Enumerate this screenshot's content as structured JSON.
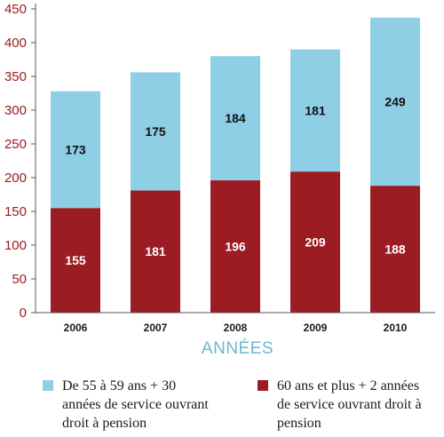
{
  "chart_data": {
    "type": "bar",
    "stacked": true,
    "categories": [
      "2006",
      "2007",
      "2008",
      "2009",
      "2010"
    ],
    "series": [
      {
        "name": "60 ans et plus + 2 années de service ouvrant droit à pension",
        "values": [
          155,
          181,
          196,
          209,
          188
        ],
        "color": "#9b1c22"
      },
      {
        "name": "De 55 à 59 ans + 30 années de service ouvrant droit à pension",
        "values": [
          173,
          175,
          184,
          181,
          249
        ],
        "color": "#8ecfe6"
      }
    ],
    "title": "",
    "xlabel": "ANNÉES",
    "ylabel": "",
    "ylim": [
      0,
      450
    ],
    "yticks": [
      0,
      50,
      100,
      150,
      200,
      250,
      300,
      350,
      400,
      450
    ],
    "grid": false,
    "legend_position": "bottom",
    "colors": {
      "axis_text": "#9b1c22",
      "xlabel": "#6fb6d1"
    }
  },
  "legend": {
    "item1": "De 55 à 59 ans + 30 années de service ouvrant droit à pension",
    "item2": "60 ans et plus + 2 années de service ouvrant droit à pension"
  }
}
